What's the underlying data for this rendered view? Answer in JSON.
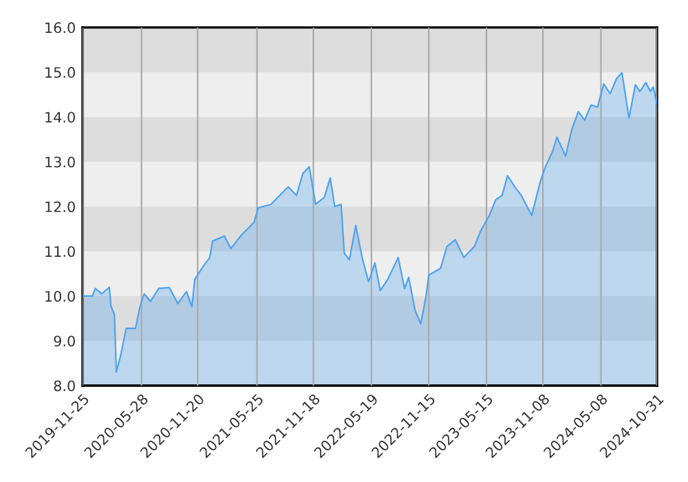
{
  "chart_data": {
    "type": "area",
    "series": [
      {
        "color": "#4da3f0",
        "x": [
          "2019-11-25",
          "2019-12-26",
          "2020-01-04",
          "2020-01-24",
          "2020-02-17",
          "2020-02-22",
          "2020-03-04",
          "2020-03-10",
          "2020-03-24",
          "2020-04-10",
          "2020-05-09",
          "2020-05-22",
          "2020-06-05",
          "2020-06-25",
          "2020-07-21",
          "2020-08-23",
          "2020-09-19",
          "2020-10-16",
          "2020-11-02",
          "2020-11-11",
          "2020-12-08",
          "2020-12-28",
          "2021-01-06",
          "2021-02-12",
          "2021-03-04",
          "2021-04-06",
          "2021-05-16",
          "2021-05-29",
          "2021-07-08",
          "2021-08-31",
          "2021-09-26",
          "2021-10-16",
          "2021-11-05",
          "2021-11-25",
          "2021-12-22",
          "2022-01-10",
          "2022-01-24",
          "2022-02-13",
          "2022-02-23",
          "2022-03-11",
          "2022-03-31",
          "2022-04-20",
          "2022-05-10",
          "2022-05-30",
          "2022-06-16",
          "2022-07-09",
          "2022-08-11",
          "2022-08-31",
          "2022-09-13",
          "2022-10-03",
          "2022-10-21",
          "2022-11-06",
          "2022-11-15",
          "2022-12-22",
          "2023-01-11",
          "2023-02-06",
          "2023-03-05",
          "2023-04-07",
          "2023-04-27",
          "2023-05-24",
          "2023-06-13",
          "2023-07-03",
          "2023-07-20",
          "2023-08-12",
          "2023-09-01",
          "2023-10-04",
          "2023-10-30",
          "2023-11-16",
          "2023-12-09",
          "2023-12-22",
          "2024-01-18",
          "2024-02-07",
          "2024-02-27",
          "2024-03-18",
          "2024-04-07",
          "2024-04-27",
          "2024-05-17",
          "2024-06-06",
          "2024-06-26",
          "2024-07-13",
          "2024-08-04",
          "2024-08-24",
          "2024-09-07",
          "2024-09-26",
          "2024-10-10",
          "2024-10-19",
          "2024-10-31"
        ],
        "values": [
          10.0,
          10.0,
          10.17,
          10.05,
          10.2,
          9.78,
          9.58,
          8.3,
          8.69,
          9.28,
          9.28,
          9.73,
          10.05,
          9.88,
          10.17,
          10.19,
          9.83,
          10.1,
          9.76,
          10.37,
          10.67,
          10.86,
          11.23,
          11.34,
          11.06,
          11.36,
          11.65,
          11.97,
          12.05,
          12.44,
          12.25,
          12.74,
          12.89,
          12.05,
          12.2,
          12.64,
          12.0,
          12.05,
          10.96,
          10.81,
          11.58,
          10.86,
          10.32,
          10.74,
          10.12,
          10.37,
          10.86,
          10.17,
          10.42,
          9.68,
          9.38,
          9.98,
          10.47,
          10.62,
          11.11,
          11.26,
          10.86,
          11.11,
          11.46,
          11.8,
          12.15,
          12.25,
          12.69,
          12.44,
          12.25,
          11.8,
          12.54,
          12.89,
          13.24,
          13.55,
          13.13,
          13.73,
          14.12,
          13.93,
          14.27,
          14.22,
          14.74,
          14.52,
          14.86,
          14.99,
          13.98,
          14.72,
          14.57,
          14.77,
          14.57,
          14.67,
          14.27
        ]
      }
    ],
    "xlim": [
      "2019-11-25",
      "2024-10-31"
    ],
    "xticks": [
      "2019-11-25",
      "2020-05-28",
      "2020-11-20",
      "2021-05-25",
      "2021-11-18",
      "2022-05-19",
      "2022-11-15",
      "2023-05-15",
      "2023-11-08",
      "2024-05-08",
      "2024-10-31"
    ],
    "ylim": [
      8,
      16
    ],
    "yticks": [
      {
        "value": 8,
        "label": "8.0"
      },
      {
        "value": 9,
        "label": "9.0"
      },
      {
        "value": 10,
        "label": "10.0"
      },
      {
        "value": 11,
        "label": "11.0"
      },
      {
        "value": 12,
        "label": "12.0"
      },
      {
        "value": 13,
        "label": "13.0"
      },
      {
        "value": 14,
        "label": "14.0"
      },
      {
        "value": 15,
        "label": "15.0"
      },
      {
        "value": 16,
        "label": "16.0"
      }
    ],
    "bands": [
      {
        "axis": "y",
        "from": 8,
        "to": 9,
        "color": "#eeeeee"
      },
      {
        "axis": "y",
        "from": 9,
        "to": 10,
        "color": "#dddddd"
      },
      {
        "axis": "y",
        "from": 10,
        "to": 11,
        "color": "#eeeeee"
      },
      {
        "axis": "y",
        "from": 11,
        "to": 12,
        "color": "#dddddd"
      },
      {
        "axis": "y",
        "from": 12,
        "to": 13,
        "color": "#eeeeee"
      },
      {
        "axis": "y",
        "from": 13,
        "to": 14,
        "color": "#dddddd"
      },
      {
        "axis": "y",
        "from": 14,
        "to": 15,
        "color": "#eeeeee"
      },
      {
        "axis": "y",
        "from": 15,
        "to": 16,
        "color": "#dddddd"
      }
    ],
    "grid": "x"
  }
}
